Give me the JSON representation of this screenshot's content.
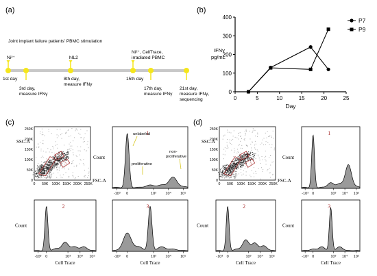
{
  "panel_labels": {
    "a": "(a)",
    "b": "(b)",
    "c": "(c)",
    "d": "(d)"
  },
  "timeline": {
    "title": "Joint implant failure patients’ PBMC stimulation",
    "accent": "#f5e61b",
    "line_color": "#c8c8c8",
    "events": [
      {
        "top": [
          "Ni²⁺"
        ],
        "bottom": [
          "1st day"
        ],
        "day": 1
      },
      {
        "top": [],
        "bottom": [
          "3rd day,",
          "measure IFNγ"
        ],
        "day": 3
      },
      {
        "top": [
          "hIL2"
        ],
        "bottom": [
          "8th day,",
          "measure IFNγ"
        ],
        "day": 8
      },
      {
        "top": [
          "Ni²⁺, CellTrace,",
          "irradiated PBMC"
        ],
        "bottom": [
          "15th day"
        ],
        "day": 15
      },
      {
        "top": [],
        "bottom": [
          "17th day,",
          "measure IFNγ"
        ],
        "day": 17
      },
      {
        "top": [],
        "bottom": [
          "21st day,",
          "measure IFNγ,",
          "sequencing"
        ],
        "day": 21
      }
    ]
  },
  "chart_data": [
    {
      "type": "line",
      "panel": "b",
      "ylabel": "IFNγ pg/mL",
      "xlabel": "Day",
      "xlim": [
        0,
        25
      ],
      "ylim": [
        0,
        400
      ],
      "xticks": [
        0,
        5,
        10,
        15,
        20,
        25
      ],
      "yticks": [
        0,
        100,
        200,
        300,
        400
      ],
      "legend": "top-right",
      "series": [
        {
          "name": "P7",
          "marker": "circle",
          "x": [
            3,
            8,
            17,
            21
          ],
          "y": [
            0,
            130,
            240,
            120
          ]
        },
        {
          "name": "P9",
          "marker": "square",
          "x": [
            3,
            8,
            17,
            21
          ],
          "y": [
            0,
            128,
            120,
            335
          ]
        }
      ]
    },
    {
      "type": "scatter",
      "panel": "c-dot",
      "xlabel": "FSC-A",
      "ylabel": "SSC-A",
      "xticks": [
        "0",
        "50K",
        "100K",
        "150K",
        "200K",
        "250K"
      ],
      "yticks": [
        "0",
        "50K",
        "100K",
        "150K",
        "200K",
        "250K"
      ],
      "gates": [
        "1",
        "2",
        "3"
      ]
    },
    {
      "type": "area",
      "panel": "c-1",
      "subtitle": "1",
      "ylabel": "Count",
      "xticks": [
        "-10³",
        "0",
        "10³",
        "10⁴",
        "10⁵"
      ],
      "annotations": [
        "unlabeled",
        "proliferative",
        "non-",
        "proliferative"
      ],
      "x": [
        -1,
        0,
        1,
        2,
        3,
        4,
        5
      ],
      "y": [
        0.02,
        0.98,
        0.02,
        0.06,
        0.06,
        0.2,
        0.03
      ]
    },
    {
      "type": "area",
      "panel": "c-2",
      "subtitle": "2",
      "ylabel": "Count",
      "xlabel": "Cell Trace",
      "xticks": [
        "-10³",
        "0",
        "10³",
        "10⁴",
        "10⁵"
      ],
      "x": [
        -1,
        0,
        1,
        2,
        3,
        4,
        5
      ],
      "y": [
        0.02,
        0.98,
        0.06,
        0.2,
        0.1,
        0.1,
        0.02
      ]
    },
    {
      "type": "area",
      "panel": "c-3",
      "subtitle": "3",
      "xlabel": "Cell Trace",
      "xticks": [
        "-10³",
        "0",
        "10³",
        "10⁴",
        "10⁵"
      ],
      "x": [
        -1,
        0,
        1,
        2,
        3,
        4,
        5
      ],
      "y": [
        0.02,
        0.4,
        0.1,
        0.98,
        0.1,
        0.05,
        0.02
      ]
    },
    {
      "type": "scatter",
      "panel": "d-dot",
      "xlabel": "FSC-A",
      "ylabel": "SSC-A",
      "xticks": [
        "0",
        "50K",
        "100K",
        "150K",
        "200K",
        "250K"
      ],
      "yticks": [
        "0",
        "50K",
        "100K",
        "150K",
        "200K",
        "250K"
      ],
      "gates": [
        "1",
        "2",
        "3"
      ]
    },
    {
      "type": "area",
      "panel": "d-1",
      "subtitle": "1",
      "ylabel": "Count",
      "xticks": [
        "-10³",
        "0",
        "10³",
        "10⁴",
        "10⁵"
      ],
      "x": [
        -1,
        0,
        1,
        2,
        3,
        4,
        5
      ],
      "y": [
        0.02,
        0.95,
        0.02,
        0.1,
        0.08,
        0.42,
        0.03
      ]
    },
    {
      "type": "area",
      "panel": "d-2",
      "subtitle": "2",
      "ylabel": "Count",
      "xlabel": "Cell Trace",
      "xticks": [
        "-10³",
        "0",
        "10³",
        "10⁴",
        "10⁵"
      ],
      "x": [
        -1,
        0,
        1,
        2,
        3,
        4,
        5
      ],
      "y": [
        0.02,
        0.98,
        0.05,
        0.25,
        0.18,
        0.12,
        0.02
      ]
    },
    {
      "type": "area",
      "panel": "d-3",
      "subtitle": "3",
      "ylabel": "Count",
      "xlabel": "Cell Trace",
      "xticks": [
        "-10³",
        "0",
        "10³",
        "10⁴",
        "10⁵"
      ],
      "x": [
        -1,
        0,
        1,
        2,
        3,
        4,
        5
      ],
      "y": [
        0.02,
        0.05,
        0.1,
        0.95,
        0.1,
        0.02,
        0.02
      ]
    }
  ]
}
